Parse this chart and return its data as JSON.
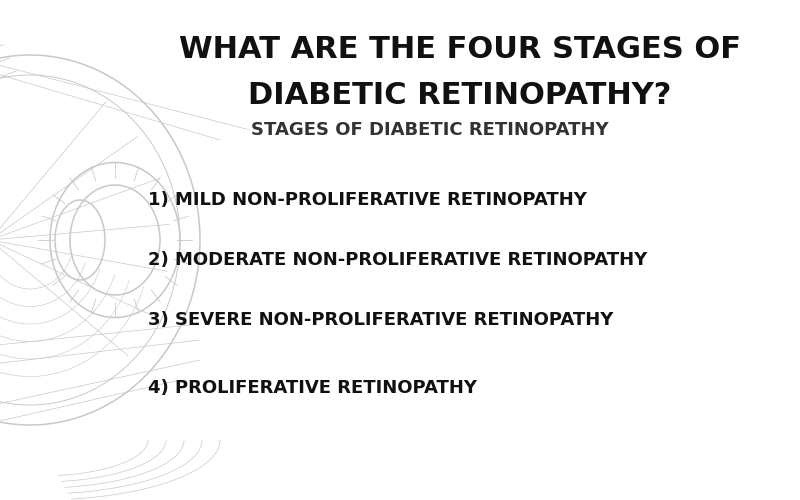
{
  "background_color": "#ffffff",
  "title_line1": "WHAT ARE THE FOUR STAGES OF",
  "title_line2": "DIABETIC RETINOPATHY?",
  "subtitle": "STAGES OF DIABETIC RETINOPATHY",
  "stages": [
    "1) MILD NON-PROLIFERATIVE RETINOPATHY",
    "2) MODERATE NON-PROLIFERATIVE RETINOPATHY",
    "3) SEVERE NON-PROLIFERATIVE RETINOPATHY",
    "4) PROLIFERATIVE RETINOPATHY"
  ],
  "title_color": "#111111",
  "subtitle_color": "#333333",
  "stage_color": "#111111",
  "title_fontsize": 22,
  "subtitle_fontsize": 13,
  "stage_fontsize": 13,
  "eye_color": "#c8c8c8",
  "fig_width": 8.0,
  "fig_height": 5.0,
  "dpi": 100
}
